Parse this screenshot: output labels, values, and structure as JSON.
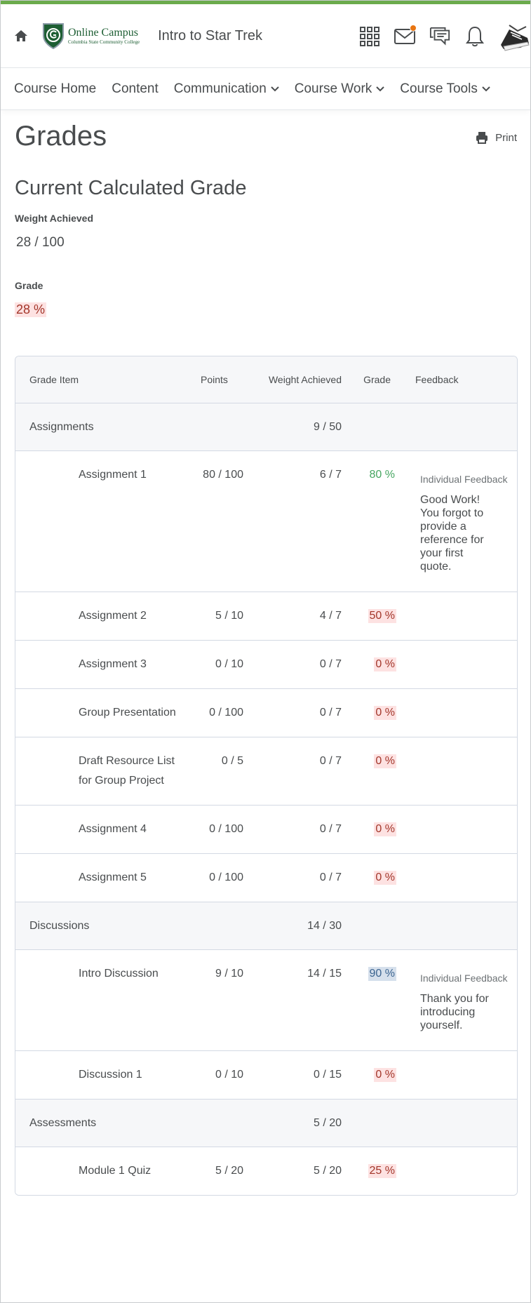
{
  "header": {
    "logo_title": "Online Campus",
    "logo_subtitle": "Columbia State Community College",
    "course_title": "Intro to Star Trek",
    "icons": [
      "home-icon",
      "apps-grid-icon",
      "mail-icon",
      "chat-icon",
      "bell-icon",
      "avatar"
    ],
    "accent_color": "#6bab4c",
    "badge_color": "#e87511"
  },
  "nav": {
    "items": [
      {
        "label": "Course Home",
        "dropdown": false
      },
      {
        "label": "Content",
        "dropdown": false
      },
      {
        "label": "Communication",
        "dropdown": true
      },
      {
        "label": "Course Work",
        "dropdown": true
      },
      {
        "label": "Course Tools",
        "dropdown": true
      }
    ]
  },
  "page": {
    "title": "Grades",
    "print_label": "Print",
    "section_title": "Current Calculated Grade",
    "weight_label": "Weight Achieved",
    "weight_value": "28 / 100",
    "grade_label": "Grade",
    "grade_value": "28 %"
  },
  "table": {
    "headers": {
      "item": "Grade Item",
      "points": "Points",
      "weight": "Weight Achieved",
      "grade": "Grade",
      "feedback": "Feedback"
    },
    "feedback_label": "Individual Feedback",
    "rows": [
      {
        "type": "category",
        "name": "Assignments",
        "weight": "9 / 50"
      },
      {
        "type": "item",
        "name": "Assignment 1",
        "points": "80 / 100",
        "weight": "6 / 7",
        "grade": "80 %",
        "grade_style": "green",
        "feedback": "Good Work! You forgot to provide a reference for your first quote."
      },
      {
        "type": "item",
        "name": "Assignment 2",
        "points": "5 / 10",
        "weight": "4 / 7",
        "grade": "50 %",
        "grade_style": "red"
      },
      {
        "type": "item",
        "name": "Assignment 3",
        "points": "0 / 10",
        "weight": "0 / 7",
        "grade": "0 %",
        "grade_style": "red"
      },
      {
        "type": "item",
        "name": "Group Presentation",
        "points": "0 / 100",
        "weight": "0 / 7",
        "grade": "0 %",
        "grade_style": "red"
      },
      {
        "type": "item",
        "name": "Draft Resource List for Group Project",
        "points": "0 / 5",
        "weight": "0 / 7",
        "grade": "0 %",
        "grade_style": "red"
      },
      {
        "type": "item",
        "name": "Assignment 4",
        "points": "0 / 100",
        "weight": "0 / 7",
        "grade": "0 %",
        "grade_style": "red"
      },
      {
        "type": "item",
        "name": "Assignment 5",
        "points": "0 / 100",
        "weight": "0 / 7",
        "grade": "0 %",
        "grade_style": "red"
      },
      {
        "type": "category",
        "name": "Discussions",
        "weight": "14 / 30"
      },
      {
        "type": "item",
        "name": "Intro Discussion",
        "points": "9 / 10",
        "weight": "14 / 15",
        "grade": "90 %",
        "grade_style": "blue",
        "feedback": "Thank you for introducing yourself."
      },
      {
        "type": "item",
        "name": "Discussion 1",
        "points": "0 / 10",
        "weight": "0 / 15",
        "grade": "0 %",
        "grade_style": "red"
      },
      {
        "type": "category",
        "name": "Assessments",
        "weight": "5 / 20"
      },
      {
        "type": "item",
        "name": "Module 1 Quiz",
        "points": "5 / 20",
        "weight": "5 / 20",
        "grade": "25 %",
        "grade_style": "red"
      }
    ]
  }
}
